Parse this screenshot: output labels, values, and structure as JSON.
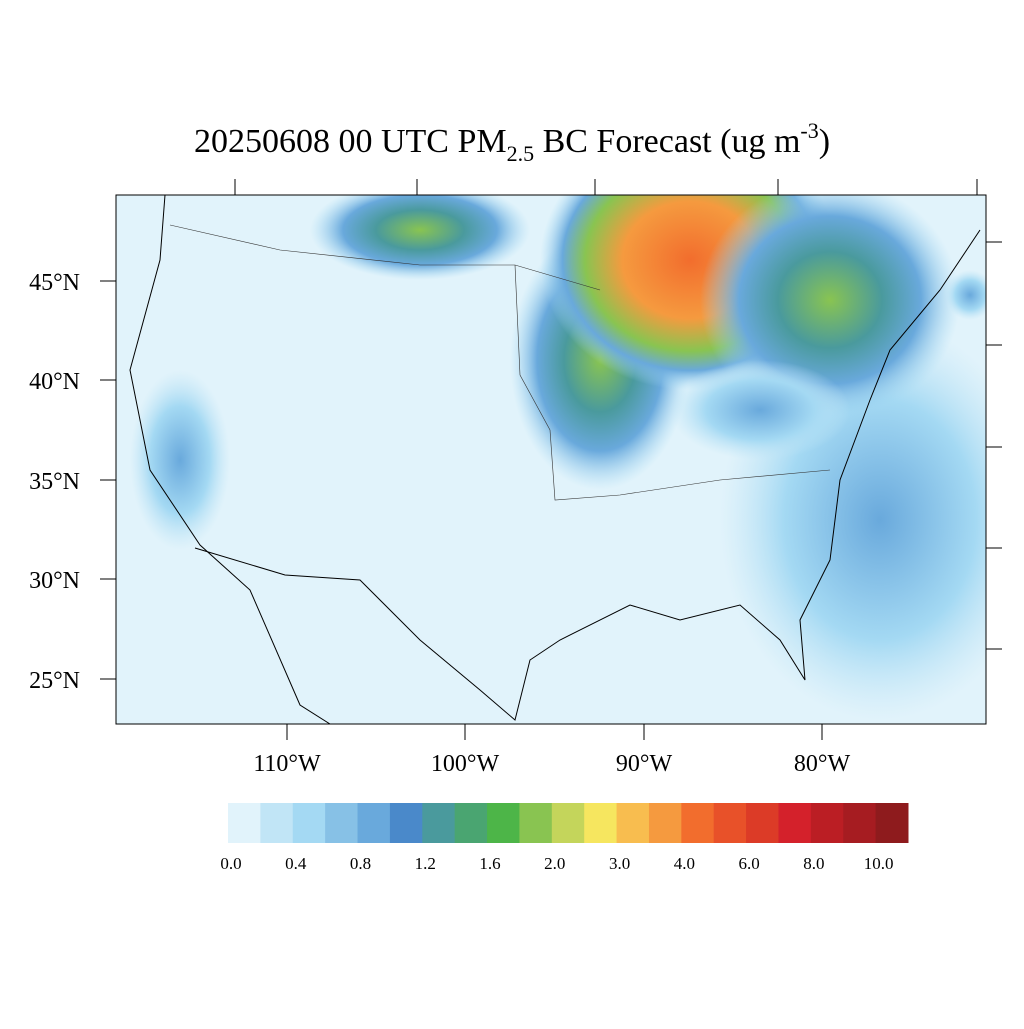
{
  "map": {
    "title": {
      "main": "20250608 00 UTC PM",
      "sub": "2.5",
      "rest": " BC Forecast (ug m",
      "sup": "-3",
      "end": ")"
    },
    "lat_labels": [
      "45°N",
      "40°N",
      "35°N",
      "30°N",
      "25°N"
    ],
    "lon_labels": [
      "110°W",
      "100°W",
      "90°W",
      "80°W"
    ],
    "colorbar": {
      "colors": [
        "#e1f3fb",
        "#c1e5f6",
        "#a4d9f3",
        "#87c1e6",
        "#69a9dc",
        "#4a89ca",
        "#4a9a9d",
        "#4aa571",
        "#4db548",
        "#89c451",
        "#c4d55b",
        "#f6e65f",
        "#f8bd4f",
        "#f59a3f",
        "#f26d2d",
        "#e85129",
        "#dc3b27",
        "#d4212b",
        "#bb1e24",
        "#a61c21",
        "#8e1b1d"
      ],
      "ticks": [
        {
          "value": 0,
          "label": "0.0"
        },
        {
          "value": 0.4,
          "label": "0.4"
        },
        {
          "value": 0.8,
          "label": "0.8"
        },
        {
          "value": 1.2,
          "label": "1.2"
        },
        {
          "value": 1.6,
          "label": "1.6"
        },
        {
          "value": 2,
          "label": "2.0"
        },
        {
          "value": 3,
          "label": "3.0"
        },
        {
          "value": 4,
          "label": "4.0"
        },
        {
          "value": 6,
          "label": "6.0"
        },
        {
          "value": 8,
          "label": "8.0"
        },
        {
          "value": 10,
          "label": "10.0"
        }
      ]
    }
  }
}
